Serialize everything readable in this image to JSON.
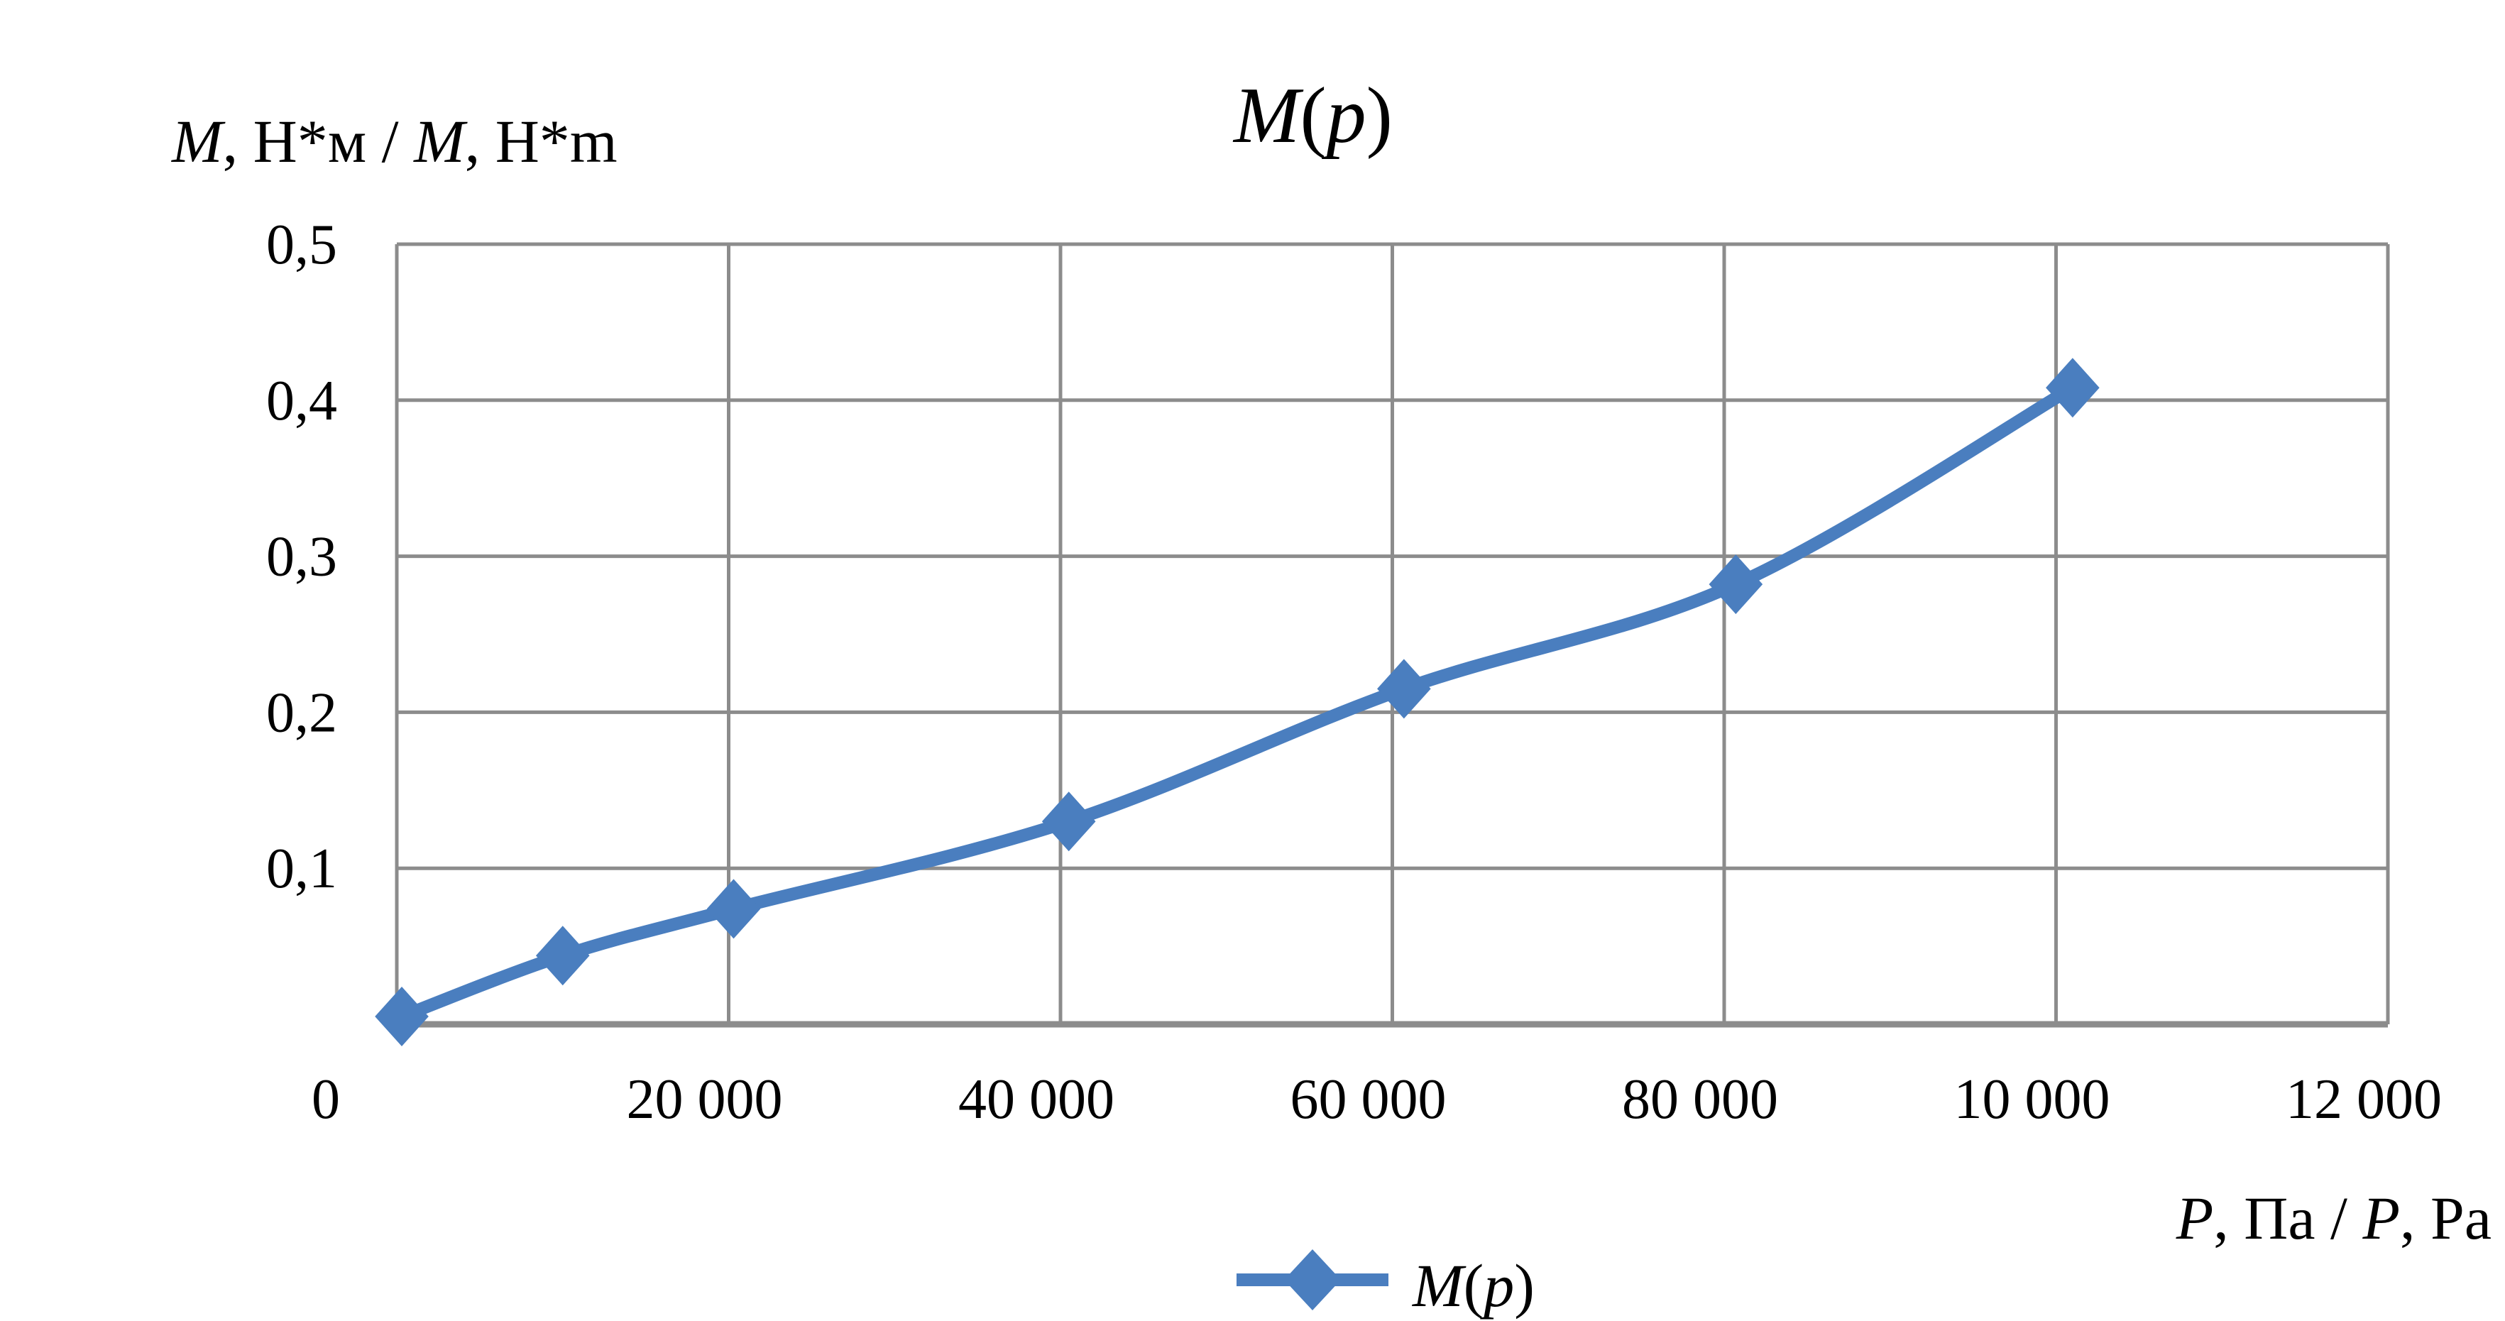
{
  "chart_data": {
    "type": "line",
    "title": "M(p)",
    "xlabel": "P, Па / P, Pa",
    "ylabel": "M, Н*м / M, Н*m",
    "xlim": [
      0,
      120000
    ],
    "ylim": [
      0,
      0.5
    ],
    "grid": true,
    "legend_position": "bottom",
    "x_tick_labels": [
      "0",
      "20 000",
      "40 000",
      "60 000",
      "80 000",
      "10 000",
      "12 000"
    ],
    "y_tick_labels": [
      "0,1",
      "0,2",
      "0,3",
      "0,4",
      "0,5"
    ],
    "y_ticks": [
      0.1,
      0.2,
      0.3,
      0.4,
      0.5
    ],
    "series": [
      {
        "name": "M(p)",
        "color": "#4a7ebf",
        "marker": "diamond",
        "smooth": true,
        "x": [
          300,
          10000,
          20300,
          40500,
          60700,
          80700,
          101000
        ],
        "y": [
          0.005,
          0.044,
          0.074,
          0.13,
          0.215,
          0.282,
          0.408
        ]
      }
    ]
  }
}
